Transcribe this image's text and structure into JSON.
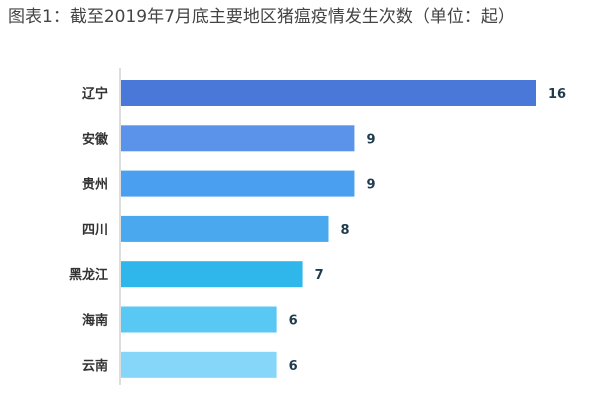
{
  "chart_data": {
    "type": "bar",
    "orientation": "horizontal",
    "title": "图表1：截至2019年7月底主要地区猪瘟疫情发生次数（单位：起）",
    "categories": [
      "辽宁",
      "安徽",
      "贵州",
      "四川",
      "黑龙江",
      "海南",
      "云南"
    ],
    "values": [
      16,
      9,
      9,
      8,
      7,
      6,
      6
    ],
    "colors": [
      "#4a78d8",
      "#5b93ea",
      "#4a9ff0",
      "#4aa8ef",
      "#2fb6ea",
      "#5ac8f5",
      "#86d6fa"
    ],
    "xlim": [
      0,
      16
    ],
    "grid": false,
    "legend": "none",
    "xlabel": "",
    "ylabel": ""
  }
}
